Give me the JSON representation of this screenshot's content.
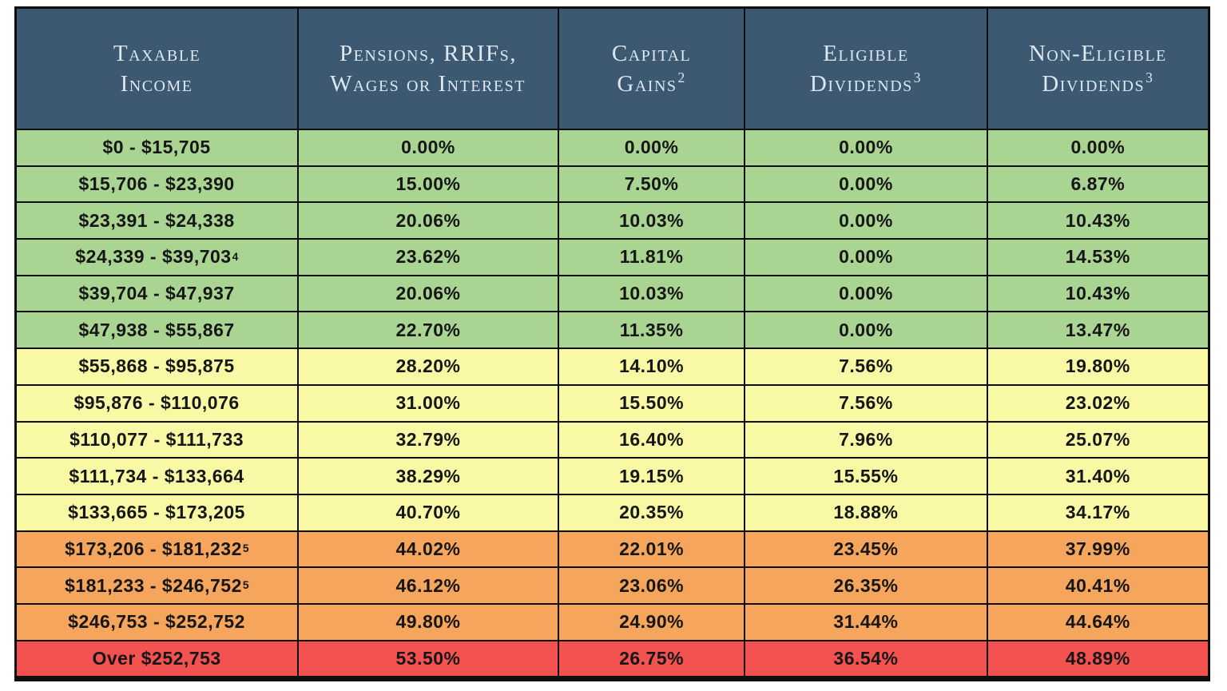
{
  "colors": {
    "header_bg": "#3d5971",
    "header_text": "#dde7f0",
    "green": "#a9d492",
    "yellow": "#f9f8a5",
    "orange": "#f6a55c",
    "red": "#f45151",
    "border": "#0e0e0e",
    "body_text": "#161616"
  },
  "table": {
    "columns": [
      {
        "line1": "Taxable",
        "line2": "Income",
        "sup": ""
      },
      {
        "line1": "Pensions, RRIFs,",
        "line2": "Wages or Interest",
        "sup": ""
      },
      {
        "line1": "Capital",
        "line2": "Gains",
        "sup": "2"
      },
      {
        "line1": "Eligible",
        "line2": "Dividends",
        "sup": "3"
      },
      {
        "line1": "Non-Eligible",
        "line2": "Dividends",
        "sup": "3"
      }
    ],
    "rows": [
      {
        "income": "$0 - $15,705",
        "sup": "",
        "pensions": "0.00%",
        "capital": "0.00%",
        "eligible": "0.00%",
        "noneligible": "0.00%"
      },
      {
        "income": "$15,706 - $23,390",
        "sup": "",
        "pensions": "15.00%",
        "capital": "7.50%",
        "eligible": "0.00%",
        "noneligible": "6.87%"
      },
      {
        "income": "$23,391 - $24,338",
        "sup": "",
        "pensions": "20.06%",
        "capital": "10.03%",
        "eligible": "0.00%",
        "noneligible": "10.43%"
      },
      {
        "income": "$24,339 - $39,703",
        "sup": "4",
        "pensions": "23.62%",
        "capital": "11.81%",
        "eligible": "0.00%",
        "noneligible": "14.53%"
      },
      {
        "income": "$39,704 - $47,937",
        "sup": "",
        "pensions": "20.06%",
        "capital": "10.03%",
        "eligible": "0.00%",
        "noneligible": "10.43%"
      },
      {
        "income": "$47,938 - $55,867",
        "sup": "",
        "pensions": "22.70%",
        "capital": "11.35%",
        "eligible": "0.00%",
        "noneligible": "13.47%"
      },
      {
        "income": "$55,868 - $95,875",
        "sup": "",
        "pensions": "28.20%",
        "capital": "14.10%",
        "eligible": "7.56%",
        "noneligible": "19.80%"
      },
      {
        "income": "$95,876 - $110,076",
        "sup": "",
        "pensions": "31.00%",
        "capital": "15.50%",
        "eligible": "7.56%",
        "noneligible": "23.02%"
      },
      {
        "income": "$110,077 - $111,733",
        "sup": "",
        "pensions": "32.79%",
        "capital": "16.40%",
        "eligible": "7.96%",
        "noneligible": "25.07%"
      },
      {
        "income": "$111,734 - $133,664",
        "sup": "",
        "pensions": "38.29%",
        "capital": "19.15%",
        "eligible": "15.55%",
        "noneligible": "31.40%"
      },
      {
        "income": "$133,665 - $173,205",
        "sup": "",
        "pensions": "40.70%",
        "capital": "20.35%",
        "eligible": "18.88%",
        "noneligible": "34.17%"
      },
      {
        "income": "$173,206 - $181,232",
        "sup": "5",
        "pensions": "44.02%",
        "capital": "22.01%",
        "eligible": "23.45%",
        "noneligible": "37.99%"
      },
      {
        "income": "$181,233 - $246,752",
        "sup": "5",
        "pensions": "46.12%",
        "capital": "23.06%",
        "eligible": "26.35%",
        "noneligible": "40.41%"
      },
      {
        "income": "$246,753 - $252,752",
        "sup": "",
        "pensions": "49.80%",
        "capital": "24.90%",
        "eligible": "31.44%",
        "noneligible": "44.64%"
      },
      {
        "income": "Over $252,753",
        "sup": "",
        "pensions": "53.50%",
        "capital": "26.75%",
        "eligible": "36.54%",
        "noneligible": "48.89%"
      }
    ]
  },
  "chart_data": {
    "type": "table",
    "title": "Combined marginal tax rates by taxable income bracket",
    "columns": [
      "Taxable Income",
      "Pensions, RRIFs, Wages or Interest",
      "Capital Gains²",
      "Eligible Dividends³",
      "Non-Eligible Dividends³"
    ],
    "rows": [
      [
        "$0 - $15,705",
        "0.00%",
        "0.00%",
        "0.00%",
        "0.00%"
      ],
      [
        "$15,706 - $23,390",
        "15.00%",
        "7.50%",
        "0.00%",
        "6.87%"
      ],
      [
        "$23,391 - $24,338",
        "20.06%",
        "10.03%",
        "0.00%",
        "10.43%"
      ],
      [
        "$24,339 - $39,703⁴",
        "23.62%",
        "11.81%",
        "0.00%",
        "14.53%"
      ],
      [
        "$39,704 - $47,937",
        "20.06%",
        "10.03%",
        "0.00%",
        "10.43%"
      ],
      [
        "$47,938 - $55,867",
        "22.70%",
        "11.35%",
        "0.00%",
        "13.47%"
      ],
      [
        "$55,868 - $95,875",
        "28.20%",
        "14.10%",
        "7.56%",
        "19.80%"
      ],
      [
        "$95,876 - $110,076",
        "31.00%",
        "15.50%",
        "7.56%",
        "23.02%"
      ],
      [
        "$110,077 - $111,733",
        "32.79%",
        "16.40%",
        "7.96%",
        "25.07%"
      ],
      [
        "$111,734 - $133,664",
        "38.29%",
        "19.15%",
        "15.55%",
        "31.40%"
      ],
      [
        "$133,665 - $173,205",
        "40.70%",
        "20.35%",
        "18.88%",
        "34.17%"
      ],
      [
        "$173,206 - $181,232⁵",
        "44.02%",
        "22.01%",
        "23.45%",
        "37.99%"
      ],
      [
        "$181,233 - $246,752⁵",
        "46.12%",
        "23.06%",
        "26.35%",
        "40.41%"
      ],
      [
        "$246,753 - $252,752",
        "49.80%",
        "24.90%",
        "31.44%",
        "44.64%"
      ],
      [
        "Over $252,753",
        "53.50%",
        "26.75%",
        "36.54%",
        "48.89%"
      ]
    ],
    "row_tiers": [
      "green",
      "green",
      "green",
      "green",
      "green",
      "green",
      "yellow",
      "yellow",
      "yellow",
      "yellow",
      "yellow",
      "orange",
      "orange",
      "orange",
      "red"
    ],
    "legend_position": "none",
    "grid": true
  }
}
